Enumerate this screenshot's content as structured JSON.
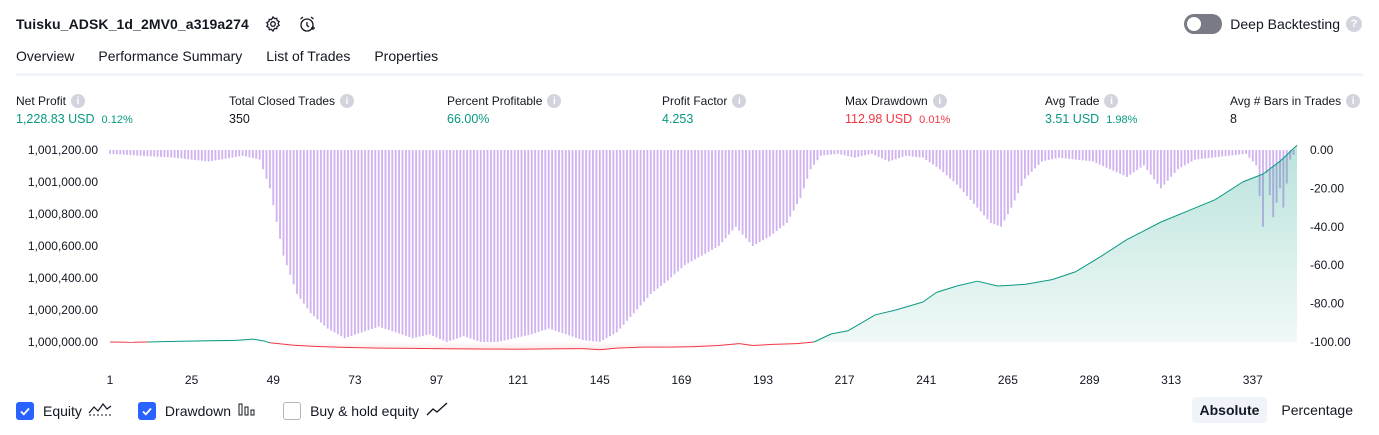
{
  "header": {
    "strategy_name": "Tuisku_ADSK_1d_2MV0_a319a274",
    "settings_icon": "gear-icon",
    "alert_icon": "alarm-clock-icon",
    "deep_backtesting_label": "Deep Backtesting",
    "deep_backtesting_enabled": false,
    "help_glyph": "?"
  },
  "tabs": [
    {
      "label": "Overview",
      "active": true
    },
    {
      "label": "Performance Summary",
      "active": false
    },
    {
      "label": "List of Trades",
      "active": false
    },
    {
      "label": "Properties",
      "active": false
    }
  ],
  "metrics": [
    {
      "label": "Net Profit",
      "value": "1,228.83 USD",
      "percent": "0.12%",
      "tone": "pos"
    },
    {
      "label": "Total Closed Trades",
      "value": "350",
      "percent": "",
      "tone": "neu"
    },
    {
      "label": "Percent Profitable",
      "value": "66.00%",
      "percent": "",
      "tone": "pos"
    },
    {
      "label": "Profit Factor",
      "value": "4.253",
      "percent": "",
      "tone": "pos"
    },
    {
      "label": "Max Drawdown",
      "value": "112.98 USD",
      "percent": "0.01%",
      "tone": "neg"
    },
    {
      "label": "Avg Trade",
      "value": "3.51 USD",
      "percent": "1.98%",
      "tone": "pos"
    },
    {
      "label": "Avg # Bars in Trades",
      "value": "8",
      "percent": "",
      "tone": "neu"
    }
  ],
  "info_glyph": "i",
  "colors": {
    "equity_up": "#089981",
    "equity_down": "#f23645",
    "drawdown_bar": "#d1b3f0",
    "accent": "#2962ff"
  },
  "chart_data": {
    "type": "area",
    "x_ticks": [
      1,
      25,
      49,
      73,
      97,
      121,
      145,
      169,
      193,
      217,
      241,
      265,
      289,
      313,
      337
    ],
    "left_axis_ticks": [
      "1,001,200.00",
      "1,001,000.00",
      "1,000,800.00",
      "1,000,600.00",
      "1,000,400.00",
      "1,000,200.00",
      "1,000,000.00"
    ],
    "right_axis_ticks": [
      "0.00",
      "-20.00",
      "-40.00",
      "-60.00",
      "-80.00",
      "-100.00"
    ],
    "equity_ylim": [
      1000000,
      1001200
    ],
    "drawdown_ylim": [
      -100,
      0
    ],
    "xlim": [
      1,
      350
    ],
    "series": [
      {
        "name": "Equity",
        "points": [
          [
            1,
            1000000
          ],
          [
            8,
            999998
          ],
          [
            12,
            1000000
          ],
          [
            20,
            1000004
          ],
          [
            30,
            1000008
          ],
          [
            38,
            1000010
          ],
          [
            43,
            1000018
          ],
          [
            46,
            1000008
          ],
          [
            48,
            999995
          ],
          [
            55,
            999980
          ],
          [
            62,
            999972
          ],
          [
            70,
            999966
          ],
          [
            80,
            999962
          ],
          [
            90,
            999960
          ],
          [
            100,
            999958
          ],
          [
            110,
            999956
          ],
          [
            120,
            999955
          ],
          [
            130,
            999957
          ],
          [
            140,
            999959
          ],
          [
            145,
            999952
          ],
          [
            150,
            999962
          ],
          [
            158,
            999968
          ],
          [
            165,
            999968
          ],
          [
            172,
            999970
          ],
          [
            180,
            999978
          ],
          [
            186,
            999990
          ],
          [
            190,
            999978
          ],
          [
            196,
            999985
          ],
          [
            203,
            999990
          ],
          [
            208,
            1000000
          ],
          [
            213,
            1000050
          ],
          [
            218,
            1000070
          ],
          [
            226,
            1000170
          ],
          [
            232,
            1000200
          ],
          [
            240,
            1000250
          ],
          [
            244,
            1000310
          ],
          [
            250,
            1000350
          ],
          [
            256,
            1000380
          ],
          [
            262,
            1000350
          ],
          [
            270,
            1000360
          ],
          [
            278,
            1000390
          ],
          [
            285,
            1000440
          ],
          [
            292,
            1000530
          ],
          [
            300,
            1000640
          ],
          [
            310,
            1000750
          ],
          [
            318,
            1000820
          ],
          [
            326,
            1000890
          ],
          [
            334,
            1001000
          ],
          [
            340,
            1001050
          ],
          [
            345,
            1001130
          ],
          [
            350,
            1001230
          ]
        ]
      },
      {
        "name": "Drawdown",
        "points": [
          [
            1,
            -2
          ],
          [
            10,
            -3
          ],
          [
            20,
            -4
          ],
          [
            30,
            -6
          ],
          [
            40,
            -3
          ],
          [
            45,
            -5
          ],
          [
            48,
            -20
          ],
          [
            52,
            -55
          ],
          [
            56,
            -75
          ],
          [
            60,
            -85
          ],
          [
            65,
            -93
          ],
          [
            70,
            -98
          ],
          [
            75,
            -95
          ],
          [
            80,
            -92
          ],
          [
            85,
            -95
          ],
          [
            90,
            -98
          ],
          [
            95,
            -96
          ],
          [
            100,
            -100
          ],
          [
            105,
            -97
          ],
          [
            110,
            -100
          ],
          [
            115,
            -100
          ],
          [
            120,
            -98
          ],
          [
            125,
            -96
          ],
          [
            130,
            -93
          ],
          [
            135,
            -96
          ],
          [
            140,
            -99
          ],
          [
            145,
            -100
          ],
          [
            150,
            -95
          ],
          [
            155,
            -85
          ],
          [
            160,
            -75
          ],
          [
            165,
            -68
          ],
          [
            170,
            -60
          ],
          [
            175,
            -55
          ],
          [
            180,
            -50
          ],
          [
            185,
            -40
          ],
          [
            190,
            -50
          ],
          [
            195,
            -45
          ],
          [
            200,
            -38
          ],
          [
            204,
            -25
          ],
          [
            207,
            -10
          ],
          [
            210,
            -3
          ],
          [
            215,
            -2
          ],
          [
            220,
            -4
          ],
          [
            225,
            -2
          ],
          [
            230,
            -6
          ],
          [
            235,
            -3
          ],
          [
            240,
            -4
          ],
          [
            245,
            -10
          ],
          [
            250,
            -18
          ],
          [
            255,
            -28
          ],
          [
            260,
            -38
          ],
          [
            263,
            -40
          ],
          [
            266,
            -30
          ],
          [
            270,
            -15
          ],
          [
            275,
            -6
          ],
          [
            280,
            -4
          ],
          [
            285,
            -5
          ],
          [
            290,
            -6
          ],
          [
            295,
            -10
          ],
          [
            300,
            -14
          ],
          [
            305,
            -8
          ],
          [
            310,
            -20
          ],
          [
            315,
            -10
          ],
          [
            320,
            -5
          ],
          [
            325,
            -4
          ],
          [
            330,
            -3
          ],
          [
            335,
            -2
          ],
          [
            338,
            -8
          ],
          [
            340,
            -40
          ],
          [
            341,
            -12
          ],
          [
            343,
            -35
          ],
          [
            345,
            -20
          ],
          [
            346,
            -30
          ],
          [
            348,
            -5
          ],
          [
            350,
            0
          ]
        ]
      }
    ]
  },
  "legend": [
    {
      "label": "Equity",
      "checked": true,
      "icon": "equity-area-icon"
    },
    {
      "label": "Drawdown",
      "checked": true,
      "icon": "drawdown-bars-icon"
    },
    {
      "label": "Buy & hold equity",
      "checked": false,
      "icon": "line-chart-icon"
    }
  ],
  "view_modes": [
    {
      "label": "Absolute",
      "active": true
    },
    {
      "label": "Percentage",
      "active": false
    }
  ]
}
